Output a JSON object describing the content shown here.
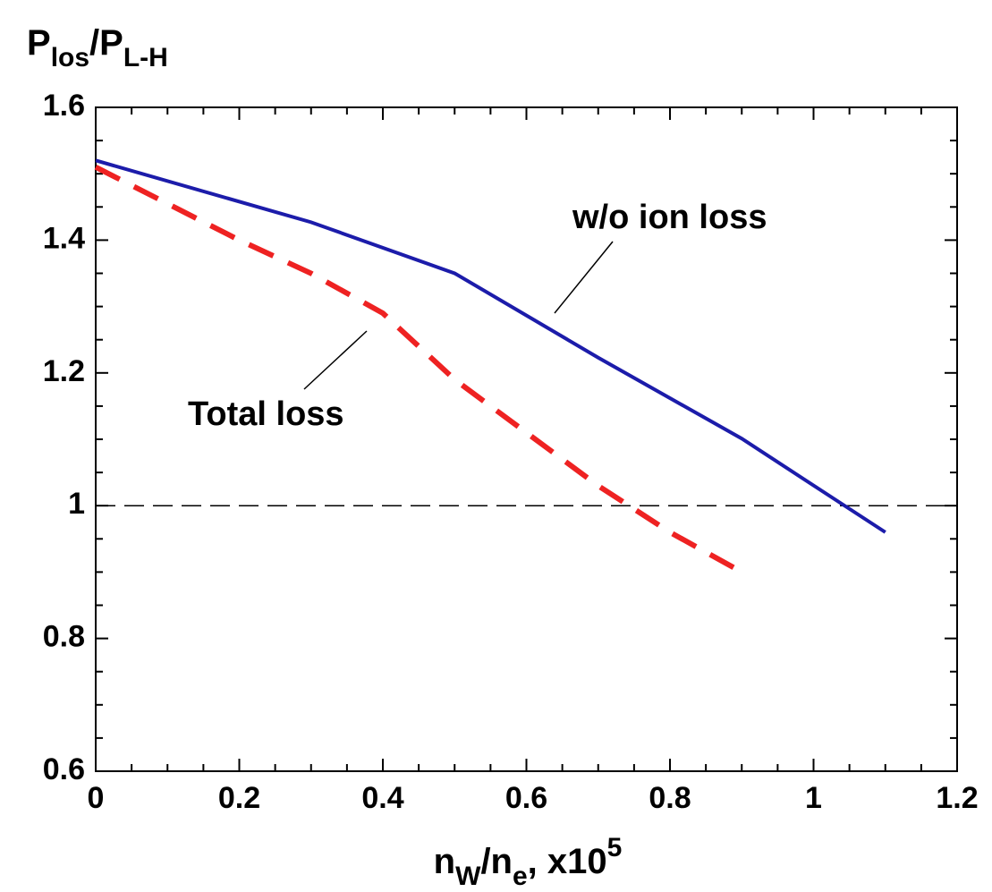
{
  "chart_data": {
    "type": "line",
    "ylabel_parts": [
      {
        "text": "P"
      },
      {
        "text": "los",
        "shift": "sub"
      },
      {
        "text": "/P"
      },
      {
        "text": "L-H",
        "shift": "sub"
      }
    ],
    "xlabel_parts": [
      {
        "text": "n"
      },
      {
        "text": "W",
        "shift": "sub"
      },
      {
        "text": "/n"
      },
      {
        "text": "e",
        "shift": "sub"
      },
      {
        "text": ", x10"
      },
      {
        "text": "5",
        "shift": "super"
      }
    ],
    "series": [
      {
        "name": "w/o ion loss",
        "color": "#1c1caa",
        "dash": false,
        "x": [
          0,
          0.3,
          0.5,
          0.7,
          0.9,
          1.1
        ],
        "values": [
          1.52,
          1.427,
          1.35,
          1.223,
          1.101,
          0.96
        ]
      },
      {
        "name": "Total loss",
        "color": "#ee2222",
        "dash": true,
        "x": [
          0,
          0.2,
          0.3,
          0.4,
          0.5,
          0.6,
          0.7,
          0.8,
          0.9
        ],
        "values": [
          1.51,
          1.4,
          1.35,
          1.29,
          1.19,
          1.11,
          1.03,
          0.96,
          0.9
        ]
      }
    ],
    "reference_line": 1,
    "xlim": [
      0,
      1.2
    ],
    "ylim": [
      0.6,
      1.6
    ],
    "xticks": [
      0,
      0.2,
      0.4,
      0.6,
      0.8,
      1,
      1.2
    ],
    "yticks": [
      0.6,
      0.8,
      1,
      1.2,
      1.4,
      1.6
    ],
    "xminorticks": [
      0.05,
      0.1,
      0.15,
      0.25,
      0.3,
      0.35,
      0.45,
      0.5,
      0.55,
      0.65,
      0.7,
      0.75,
      0.85,
      0.9,
      0.95,
      1.05,
      1.1,
      1.15
    ],
    "yminorticks": [
      0.65,
      0.7,
      0.75,
      0.85,
      0.9,
      0.95,
      1.05,
      1.1,
      1.15,
      1.25,
      1.3,
      1.35,
      1.45,
      1.5,
      1.55
    ]
  }
}
